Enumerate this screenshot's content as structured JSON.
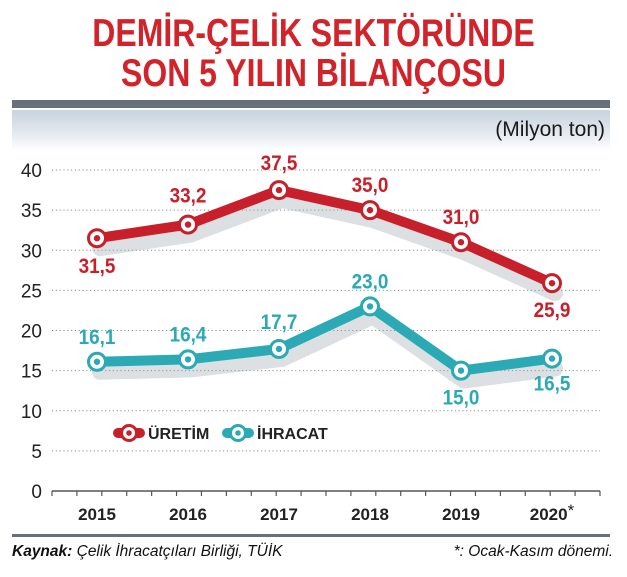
{
  "title_line1": "DEMİR-ÇELİK SEKTÖRÜNDE",
  "title_line2": "SON 5 YILIN BİLANÇOSU",
  "unit": "(Milyon ton)",
  "footer": {
    "source_label": "Kaynak:",
    "source_text": " Çelik İhracatçıları Birliği, TÜİK",
    "note": "*: Ocak-Kasım dönemi."
  },
  "colors": {
    "title": "#d2232a",
    "uretim": "#c8202a",
    "ihracat": "#2ba9b4",
    "band": "#66717c"
  },
  "chart_data": {
    "type": "line",
    "categories": [
      "2015",
      "2016",
      "2017",
      "2018",
      "2019",
      "2020*"
    ],
    "ylim": [
      0,
      40
    ],
    "yticks": [
      "0",
      "5",
      "10",
      "15",
      "20",
      "25",
      "30",
      "35",
      "40"
    ],
    "grid": true,
    "legend_placement": "middle-left",
    "series": [
      {
        "name": "ÜRETİM",
        "values": [
          31.5,
          33.2,
          37.5,
          35.0,
          31.0,
          25.9
        ],
        "labels": [
          "31,5",
          "33,2",
          "37,5",
          "35,0",
          "31,0",
          "25,9"
        ]
      },
      {
        "name": "İHRACAT",
        "values": [
          16.1,
          16.4,
          17.7,
          23.0,
          15.0,
          16.5
        ],
        "labels": [
          "16,1",
          "16,4",
          "17,7",
          "23,0",
          "15,0",
          "16,5"
        ]
      }
    ]
  }
}
